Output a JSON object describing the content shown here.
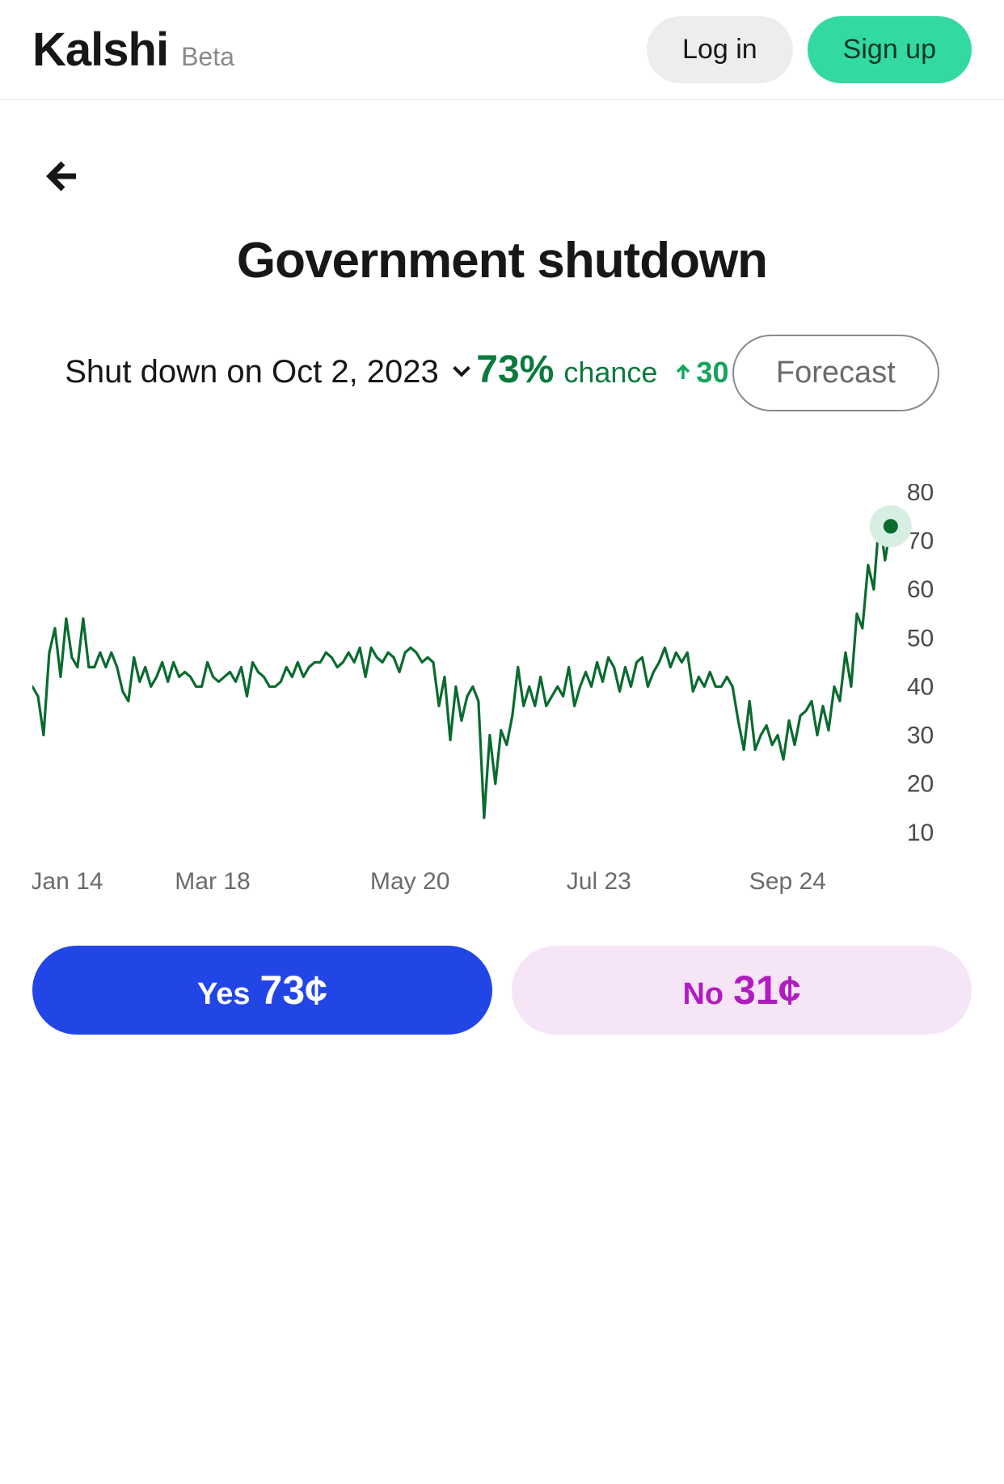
{
  "header": {
    "brand": "Kalshi",
    "beta": "Beta",
    "login": "Log in",
    "signup": "Sign up"
  },
  "market": {
    "title": "Government shutdown",
    "subtitle": "Shut down on Oct 2, 2023",
    "chance_pct": "73%",
    "chance_label": "chance",
    "delta": "30",
    "delta_direction": "up",
    "forecast_label": "Forecast"
  },
  "chart": {
    "type": "line",
    "line_color": "#0a6b2f",
    "line_width": 3.2,
    "background": "#ffffff",
    "marker_color": "#0a6b2f",
    "marker_halo_color": "#d6efe2",
    "y_axis": {
      "min": 10,
      "max": 80,
      "step": 10,
      "tick_color": "#4a4a4a",
      "tick_fontsize": 30
    },
    "x_axis": {
      "ticks": [
        "Jan 14",
        "Mar 18",
        "May 20",
        "Jul 23",
        "Sep 24"
      ],
      "tick_positions": [
        0.04,
        0.21,
        0.44,
        0.66,
        0.88
      ],
      "tick_color": "#6b6b6b",
      "tick_fontsize": 30
    },
    "series": [
      40,
      38,
      30,
      47,
      52,
      42,
      54,
      46,
      44,
      54,
      44,
      44,
      47,
      44,
      47,
      44,
      39,
      37,
      46,
      41,
      44,
      40,
      42,
      45,
      41,
      45,
      42,
      43,
      42,
      40,
      40,
      45,
      42,
      41,
      42,
      43,
      41,
      44,
      38,
      45,
      43,
      42,
      40,
      40,
      41,
      44,
      42,
      45,
      42,
      44,
      45,
      45,
      47,
      46,
      44,
      45,
      47,
      45,
      48,
      42,
      48,
      46,
      45,
      47,
      46,
      43,
      47,
      48,
      47,
      45,
      46,
      45,
      36,
      42,
      29,
      40,
      33,
      38,
      40,
      37,
      13,
      30,
      20,
      31,
      28,
      34,
      44,
      36,
      40,
      36,
      42,
      36,
      38,
      40,
      38,
      44,
      36,
      40,
      43,
      40,
      45,
      41,
      46,
      44,
      39,
      44,
      40,
      45,
      46,
      40,
      43,
      45,
      48,
      44,
      47,
      45,
      47,
      39,
      42,
      40,
      43,
      40,
      40,
      42,
      40,
      33,
      27,
      37,
      27,
      30,
      32,
      28,
      30,
      25,
      33,
      28,
      34,
      35,
      37,
      30,
      36,
      31,
      40,
      37,
      47,
      40,
      55,
      52,
      65,
      60,
      75,
      66,
      73
    ],
    "end_value": 73
  },
  "trade": {
    "yes_label": "Yes",
    "yes_price": "73¢",
    "yes_bg": "#2246e6",
    "yes_fg": "#ffffff",
    "no_label": "No",
    "no_price": "31¢",
    "no_bg": "#f6e4f7",
    "no_fg": "#b11cc0"
  },
  "colors": {
    "text": "#171717",
    "muted": "#6b6b6b",
    "accent_green": "#0a7a3d",
    "signup_bg": "#33d9a2",
    "login_bg": "#ededed",
    "border": "#e5e5e5"
  }
}
